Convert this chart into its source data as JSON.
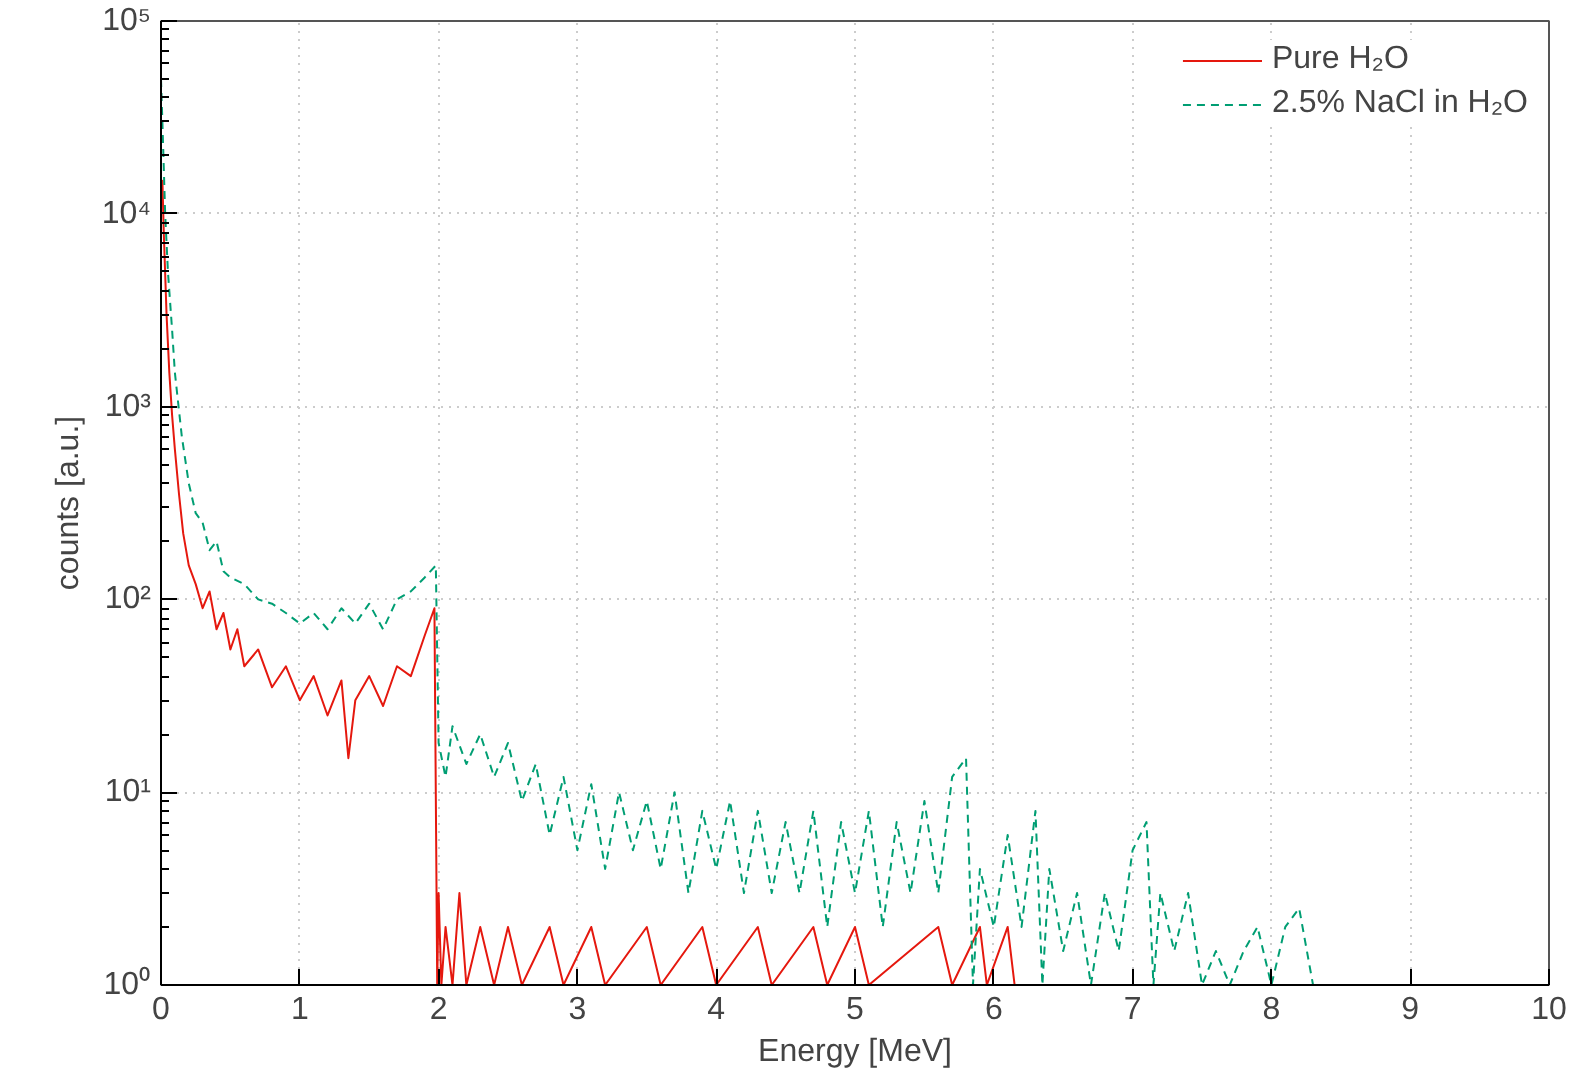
{
  "chart_data": {
    "type": "line",
    "xlabel": "Energy [MeV]",
    "ylabel": "counts [a.u.]",
    "log": "y",
    "xlim": [
      0,
      10
    ],
    "xticks": [
      0,
      1,
      2,
      3,
      4,
      5,
      6,
      7,
      8,
      9,
      10
    ],
    "ylim": [
      1,
      100000
    ],
    "yticks": [
      {
        "value": 1,
        "label": "10⁰"
      },
      {
        "value": 10,
        "label": "10¹"
      },
      {
        "value": 100,
        "label": "10²"
      },
      {
        "value": 1000,
        "label": "10³"
      },
      {
        "value": 10000,
        "label": "10⁴"
      },
      {
        "value": 100000,
        "label": "10⁵"
      }
    ],
    "grid": true,
    "legend": "top right",
    "marker": "none",
    "series": [
      {
        "name": "Pure H₂O",
        "color": "#e5180e",
        "line_style": "solid",
        "x": [
          0.01,
          0.02,
          0.04,
          0.06,
          0.08,
          0.1,
          0.13,
          0.16,
          0.2,
          0.25,
          0.3,
          0.35,
          0.4,
          0.45,
          0.5,
          0.55,
          0.6,
          0.7,
          0.8,
          0.9,
          1.0,
          1.1,
          1.2,
          1.3,
          1.35,
          1.4,
          1.5,
          1.6,
          1.7,
          1.8,
          1.9,
          1.97,
          1.99,
          2.0,
          2.02,
          2.05,
          2.1,
          2.15,
          2.2,
          2.3,
          2.4,
          2.5,
          2.6,
          2.8,
          2.9,
          3.1,
          3.2,
          3.5,
          3.6,
          3.9,
          4.0,
          4.3,
          4.4,
          4.7,
          4.8,
          5.0,
          5.1,
          5.6,
          5.7,
          5.9,
          5.95,
          6.1,
          6.15
        ],
        "values": [
          15000,
          8000,
          3000,
          1500,
          900,
          600,
          350,
          220,
          150,
          120,
          90,
          110,
          70,
          85,
          55,
          70,
          45,
          55,
          35,
          45,
          30,
          40,
          25,
          38,
          15,
          30,
          40,
          28,
          45,
          40,
          65,
          90,
          1,
          3,
          1,
          2,
          1,
          3,
          1,
          2,
          1,
          2,
          1,
          2,
          1,
          2,
          1,
          2,
          1,
          2,
          1,
          2,
          1,
          2,
          1,
          2,
          1,
          2,
          1,
          2,
          1,
          2,
          1
        ]
      },
      {
        "name": "2.5% NaCl in H₂O",
        "color": "#009e73",
        "line_style": "dashed",
        "x": [
          0,
          0.01,
          0.03,
          0.05,
          0.08,
          0.1,
          0.15,
          0.2,
          0.25,
          0.3,
          0.35,
          0.4,
          0.45,
          0.5,
          0.6,
          0.7,
          0.8,
          0.9,
          1.0,
          1.1,
          1.2,
          1.3,
          1.4,
          1.5,
          1.6,
          1.7,
          1.8,
          1.9,
          1.98,
          2.0,
          2.05,
          2.1,
          2.2,
          2.3,
          2.4,
          2.5,
          2.6,
          2.7,
          2.8,
          2.9,
          3.0,
          3.1,
          3.2,
          3.3,
          3.4,
          3.5,
          3.6,
          3.7,
          3.8,
          3.9,
          4.0,
          4.1,
          4.2,
          4.3,
          4.4,
          4.5,
          4.6,
          4.7,
          4.8,
          4.9,
          5.0,
          5.1,
          5.2,
          5.3,
          5.4,
          5.5,
          5.6,
          5.7,
          5.8,
          5.85,
          5.9,
          6.0,
          6.1,
          6.2,
          6.3,
          6.35,
          6.4,
          6.5,
          6.6,
          6.7,
          6.8,
          6.9,
          7.0,
          7.1,
          7.15,
          7.2,
          7.3,
          7.4,
          7.5,
          7.6,
          7.7,
          7.8,
          7.9,
          8.0,
          8.1,
          8.2,
          8.3
        ],
        "values": [
          50000,
          30000,
          10000,
          5000,
          2500,
          1500,
          700,
          400,
          280,
          250,
          180,
          200,
          140,
          130,
          120,
          100,
          95,
          85,
          75,
          85,
          70,
          90,
          75,
          95,
          70,
          100,
          110,
          130,
          150,
          18,
          12,
          22,
          14,
          20,
          12,
          18,
          9,
          14,
          6,
          12,
          5,
          11,
          4,
          10,
          5,
          9,
          4,
          10,
          3,
          8,
          4,
          9,
          3,
          8,
          3,
          7,
          3,
          8,
          2,
          7,
          3,
          8,
          2,
          7,
          3,
          9,
          3,
          12,
          15,
          1,
          4,
          2,
          6,
          2,
          8,
          1,
          4,
          1.5,
          3,
          1,
          3,
          1.5,
          5,
          7,
          1,
          3,
          1.5,
          3,
          1,
          1.5,
          1,
          1.5,
          2,
          1,
          2,
          2.5,
          1
        ]
      }
    ]
  }
}
